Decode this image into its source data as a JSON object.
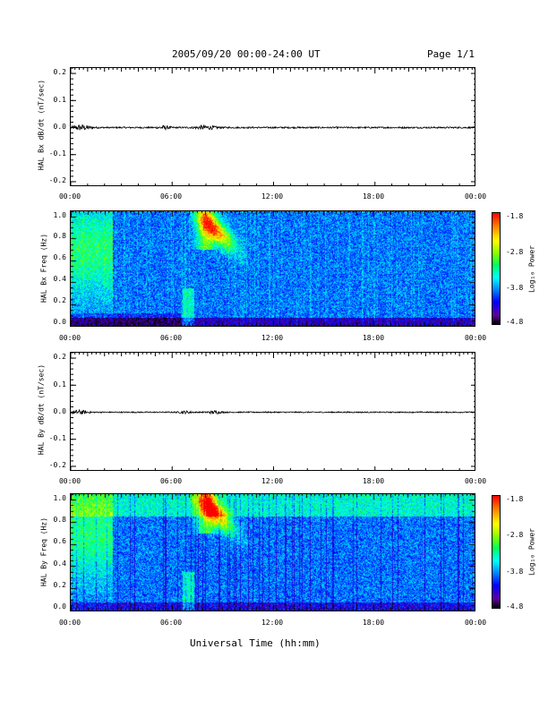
{
  "header": {
    "title": "2005/09/20  00:00-24:00 UT",
    "page": "Page 1/1"
  },
  "footer": {
    "xlabel": "Universal Time (hh:mm)"
  },
  "colorbar": {
    "title": "Log₁₀ Power",
    "ticks": [
      "-1.8",
      "-2.8",
      "-3.8",
      "-4.8"
    ]
  },
  "chart_data": [
    {
      "type": "line",
      "ylabel": "HAL Bx dB/dt (nT/sec)",
      "xlabel": "",
      "x_ticks": [
        "00:00",
        "06:00",
        "12:00",
        "18:00",
        "00:00"
      ],
      "y_ticks": [
        "0.2",
        "0.1",
        "0.0",
        "-0.1",
        "-0.2"
      ],
      "xlim_hours": [
        0,
        24
      ],
      "ylim": [
        -0.22,
        0.22
      ],
      "series": [
        {
          "values_description_peak_amplitude": 0.008,
          "baseline": 0.0
        }
      ]
    },
    {
      "type": "heatmap",
      "ylabel": "HAL Bx Freq (Hz)",
      "x_ticks": [
        "00:00",
        "06:00",
        "12:00",
        "18:00",
        "00:00"
      ],
      "y_ticks": [
        "1.0",
        "0.8",
        "0.6",
        "0.4",
        "0.2",
        "0.0"
      ],
      "xlim_hours": [
        0,
        24
      ],
      "ylim": [
        0,
        1.05
      ],
      "color_range": [
        -4.8,
        -1.8
      ],
      "color_label": "Log₁₀ Power"
    },
    {
      "type": "line",
      "ylabel": "HAL By dB/dt (nT/sec)",
      "x_ticks": [
        "00:00",
        "06:00",
        "12:00",
        "18:00",
        "00:00"
      ],
      "y_ticks": [
        "0.2",
        "0.1",
        "0.0",
        "-0.1",
        "-0.2"
      ],
      "xlim_hours": [
        0,
        24
      ],
      "ylim": [
        -0.22,
        0.22
      ],
      "series": [
        {
          "values_description_peak_amplitude": 0.006,
          "baseline": 0.0
        }
      ]
    },
    {
      "type": "heatmap",
      "ylabel": "HAL By Freq (Hz)",
      "x_ticks": [
        "00:00",
        "06:00",
        "12:00",
        "18:00",
        "00:00"
      ],
      "y_ticks": [
        "1.0",
        "0.8",
        "0.6",
        "0.4",
        "0.2",
        "0.0"
      ],
      "xlim_hours": [
        0,
        24
      ],
      "ylim": [
        0,
        1.05
      ],
      "color_range": [
        -4.8,
        -1.8
      ],
      "color_label": "Log₁₀ Power"
    }
  ]
}
